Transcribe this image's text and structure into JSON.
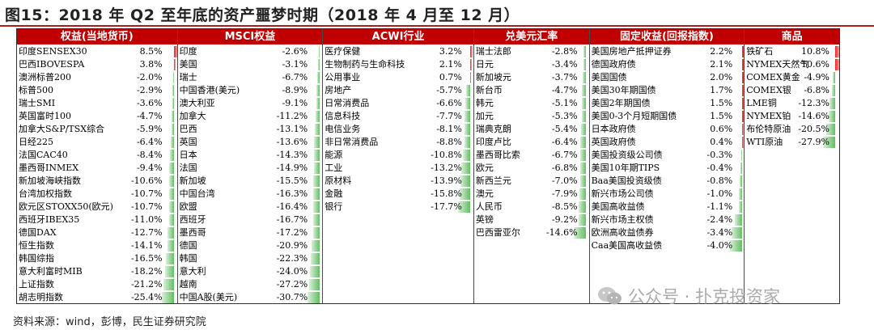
{
  "title": "图15：2018 年 Q2 至年底的资产噩梦时期（2018 年 4 月至 12 月）",
  "source": "资料来源：wind，彭博，民生证券研究院",
  "watermark": "公众号 · 扑克投资家",
  "colors": {
    "header": "#c00000",
    "positive": "#e82424",
    "negative": "#63be63"
  },
  "chart_data": {
    "type": "table",
    "columns": [
      {
        "header": "权益(当地货币)",
        "rows": [
          {
            "name": "印度SENSEX30",
            "value": 8.5
          },
          {
            "name": "巴西IBOVESPA",
            "value": 3.8
          },
          {
            "name": "澳洲标普200",
            "value": -2.0
          },
          {
            "name": "标普500",
            "value": -2.9
          },
          {
            "name": "瑞士SMI",
            "value": -3.6
          },
          {
            "name": "英国富时100",
            "value": -4.7
          },
          {
            "name": "加拿大S&P/TSX综合",
            "value": -5.9
          },
          {
            "name": "日经225",
            "value": -6.4
          },
          {
            "name": "法国CAC40",
            "value": -8.4
          },
          {
            "name": "墨西哥INMEX",
            "value": -9.4
          },
          {
            "name": "新加坡海峡指数",
            "value": -10.6
          },
          {
            "name": "台湾加权指数",
            "value": -10.7
          },
          {
            "name": "欧元区STOXX50(欧元)",
            "value": -10.7
          },
          {
            "name": "西班牙IBEX35",
            "value": -11.0
          },
          {
            "name": "德国DAX",
            "value": -12.7
          },
          {
            "name": "恒生指数",
            "value": -14.1
          },
          {
            "name": "韩国综指",
            "value": -16.5
          },
          {
            "name": "意大利富时MIB",
            "value": -18.2
          },
          {
            "name": "上证指数",
            "value": -21.2
          },
          {
            "name": "胡志明指数",
            "value": -25.4
          }
        ]
      },
      {
        "header": "MSCI权益",
        "rows": [
          {
            "name": "印度",
            "value": -2.6
          },
          {
            "name": "美国",
            "value": -3.1
          },
          {
            "name": "瑞士",
            "value": -6.7
          },
          {
            "name": "中国香港(美元)",
            "value": -8.9
          },
          {
            "name": "澳大利亚",
            "value": -9.1
          },
          {
            "name": "加拿大",
            "value": -11.2
          },
          {
            "name": "巴西",
            "value": -13.1
          },
          {
            "name": "英国",
            "value": -13.6
          },
          {
            "name": "日本",
            "value": -14.3
          },
          {
            "name": "法国",
            "value": -14.9
          },
          {
            "name": "新加坡",
            "value": -15.5
          },
          {
            "name": "中国台湾",
            "value": -16.3
          },
          {
            "name": "欧盟",
            "value": -16.4
          },
          {
            "name": "西班牙",
            "value": -16.7
          },
          {
            "name": "墨西哥",
            "value": -17.2
          },
          {
            "name": "德国",
            "value": -20.9
          },
          {
            "name": "韩国",
            "value": -22.3
          },
          {
            "name": "意大利",
            "value": -24.0
          },
          {
            "name": "越南",
            "value": -27.2
          },
          {
            "name": "中国A股(美元)",
            "value": -30.7
          }
        ]
      },
      {
        "header": "ACWI行业",
        "rows": [
          {
            "name": "医疗保健",
            "value": 3.2
          },
          {
            "name": "生物制药与生命科技",
            "value": 2.1
          },
          {
            "name": "公用事业",
            "value": 0.7
          },
          {
            "name": "房地产",
            "value": -5.7
          },
          {
            "name": "日常消费品",
            "value": -6.6
          },
          {
            "name": "信息科技",
            "value": -7.7
          },
          {
            "name": "电信业务",
            "value": -8.1
          },
          {
            "name": "非日常消费品",
            "value": -8.8
          },
          {
            "name": "能源",
            "value": -10.8
          },
          {
            "name": "工业",
            "value": -13.2
          },
          {
            "name": "原材料",
            "value": -13.9
          },
          {
            "name": "金融",
            "value": -15.8
          },
          {
            "name": "银行",
            "value": -17.7
          }
        ]
      },
      {
        "header": "兑美元汇率",
        "rows": [
          {
            "name": "瑞士法郎",
            "value": -2.8
          },
          {
            "name": "日元",
            "value": -3.4
          },
          {
            "name": "新加坡元",
            "value": -3.7
          },
          {
            "name": "新台币",
            "value": -4.7
          },
          {
            "name": "韩元",
            "value": -5.1
          },
          {
            "name": "加元",
            "value": -5.3
          },
          {
            "name": "瑞典克朗",
            "value": -5.4
          },
          {
            "name": "印度卢比",
            "value": -6.4
          },
          {
            "name": "墨西哥比索",
            "value": -6.7
          },
          {
            "name": "欧元",
            "value": -6.8
          },
          {
            "name": "新西兰元",
            "value": -7.0
          },
          {
            "name": "澳元",
            "value": -7.9
          },
          {
            "name": "人民币",
            "value": -8.5
          },
          {
            "name": "英镑",
            "value": -9.2
          },
          {
            "name": "巴西雷亚尔",
            "value": -14.6
          }
        ]
      },
      {
        "header": "固定收益(回报指数)",
        "rows": [
          {
            "name": "美国房地产抵押证券",
            "value": 2.2
          },
          {
            "name": "德国政府债",
            "value": 2.1
          },
          {
            "name": "美国国债",
            "value": 2.0
          },
          {
            "name": "美国30年期国债",
            "value": 1.7
          },
          {
            "name": "美国2年期国债",
            "value": 1.5
          },
          {
            "name": "美国0-3个月短期国债",
            "value": 1.5
          },
          {
            "name": "日本政府债",
            "value": 0.6
          },
          {
            "name": "英国政府债",
            "value": 0.4
          },
          {
            "name": "美国投资级公司债",
            "value": -0.3
          },
          {
            "name": "美国10年期TIPS",
            "value": -0.4
          },
          {
            "name": "Baa美国投资级债",
            "value": -0.8
          },
          {
            "name": "新兴市场公司债",
            "value": -1.0
          },
          {
            "name": "美国高收益债",
            "value": -1.1
          },
          {
            "name": "新兴市场主权债",
            "value": -2.4
          },
          {
            "name": "欧洲高收益债券",
            "value": -3.4
          },
          {
            "name": "Caa美国高收益债",
            "value": -4.0
          }
        ]
      },
      {
        "header": "商品",
        "rows": [
          {
            "name": "铁矿石",
            "value": 10.8
          },
          {
            "name": "NYMEX天然气",
            "value": 10.6
          },
          {
            "name": "COMEX黄金",
            "value": -4.9
          },
          {
            "name": "COMEX银",
            "value": -6.8
          },
          {
            "name": "LME铜",
            "value": -12.3
          },
          {
            "name": "NYMEX铂",
            "value": -14.6
          },
          {
            "name": "布伦特原油",
            "value": -20.5
          },
          {
            "name": "WTI原油",
            "value": -27.9
          }
        ]
      }
    ]
  }
}
